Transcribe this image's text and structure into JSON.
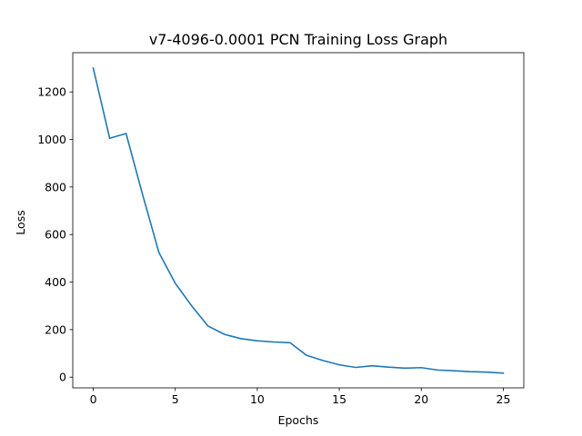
{
  "chart_data": {
    "type": "line",
    "title": "v7-4096-0.0001 PCN Training Loss Graph",
    "xlabel": "Epochs",
    "ylabel": "Loss",
    "xlim": [
      -1.25,
      26.25
    ],
    "ylim": [
      -45,
      1365
    ],
    "x_ticks": [
      0,
      5,
      10,
      15,
      20,
      25
    ],
    "y_ticks": [
      0,
      200,
      400,
      600,
      800,
      1000,
      1200
    ],
    "grid": false,
    "legend": "none",
    "line_color": "#1f77b4",
    "series": [
      {
        "x": [
          0,
          1,
          2,
          3,
          4,
          5,
          6,
          7,
          8,
          9,
          10,
          11,
          12,
          13,
          14,
          15,
          16,
          17,
          18,
          19,
          20,
          21,
          22,
          23,
          24,
          25
        ],
        "values": [
          1300,
          1005,
          1025,
          770,
          525,
          395,
          300,
          215,
          180,
          162,
          153,
          148,
          145,
          92,
          70,
          52,
          41,
          48,
          42,
          38,
          40,
          30,
          27,
          23,
          21,
          17
        ]
      }
    ]
  }
}
